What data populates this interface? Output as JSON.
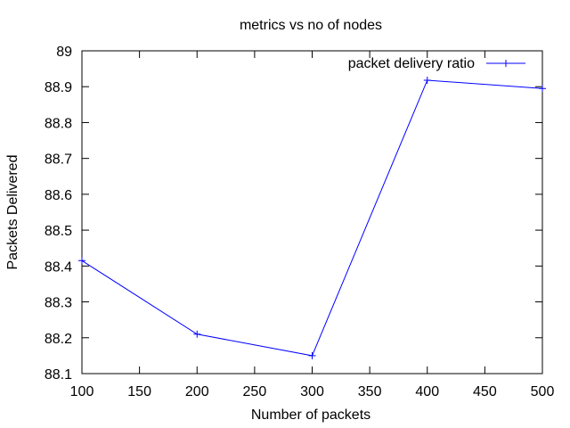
{
  "chart_data": {
    "type": "line",
    "title": "metrics vs no of nodes",
    "xlabel": "Number of packets",
    "ylabel": "Packets Delivered",
    "x": [
      100,
      200,
      300,
      400,
      500
    ],
    "series": [
      {
        "name": "packet delivery ratio",
        "values": [
          88.415,
          88.21,
          88.15,
          88.918,
          88.895
        ],
        "color": "#0000ff",
        "marker": "plus"
      }
    ],
    "xlim": [
      100,
      500
    ],
    "ylim": [
      88.1,
      89.0
    ],
    "xticks": [
      "100",
      "150",
      "200",
      "250",
      "300",
      "350",
      "400",
      "450",
      "500"
    ],
    "yticks": [
      "88.1",
      "88.2",
      "88.3",
      "88.4",
      "88.5",
      "88.6",
      "88.7",
      "88.8",
      "88.9",
      "89"
    ],
    "grid": false,
    "legend_position": "top-right"
  }
}
